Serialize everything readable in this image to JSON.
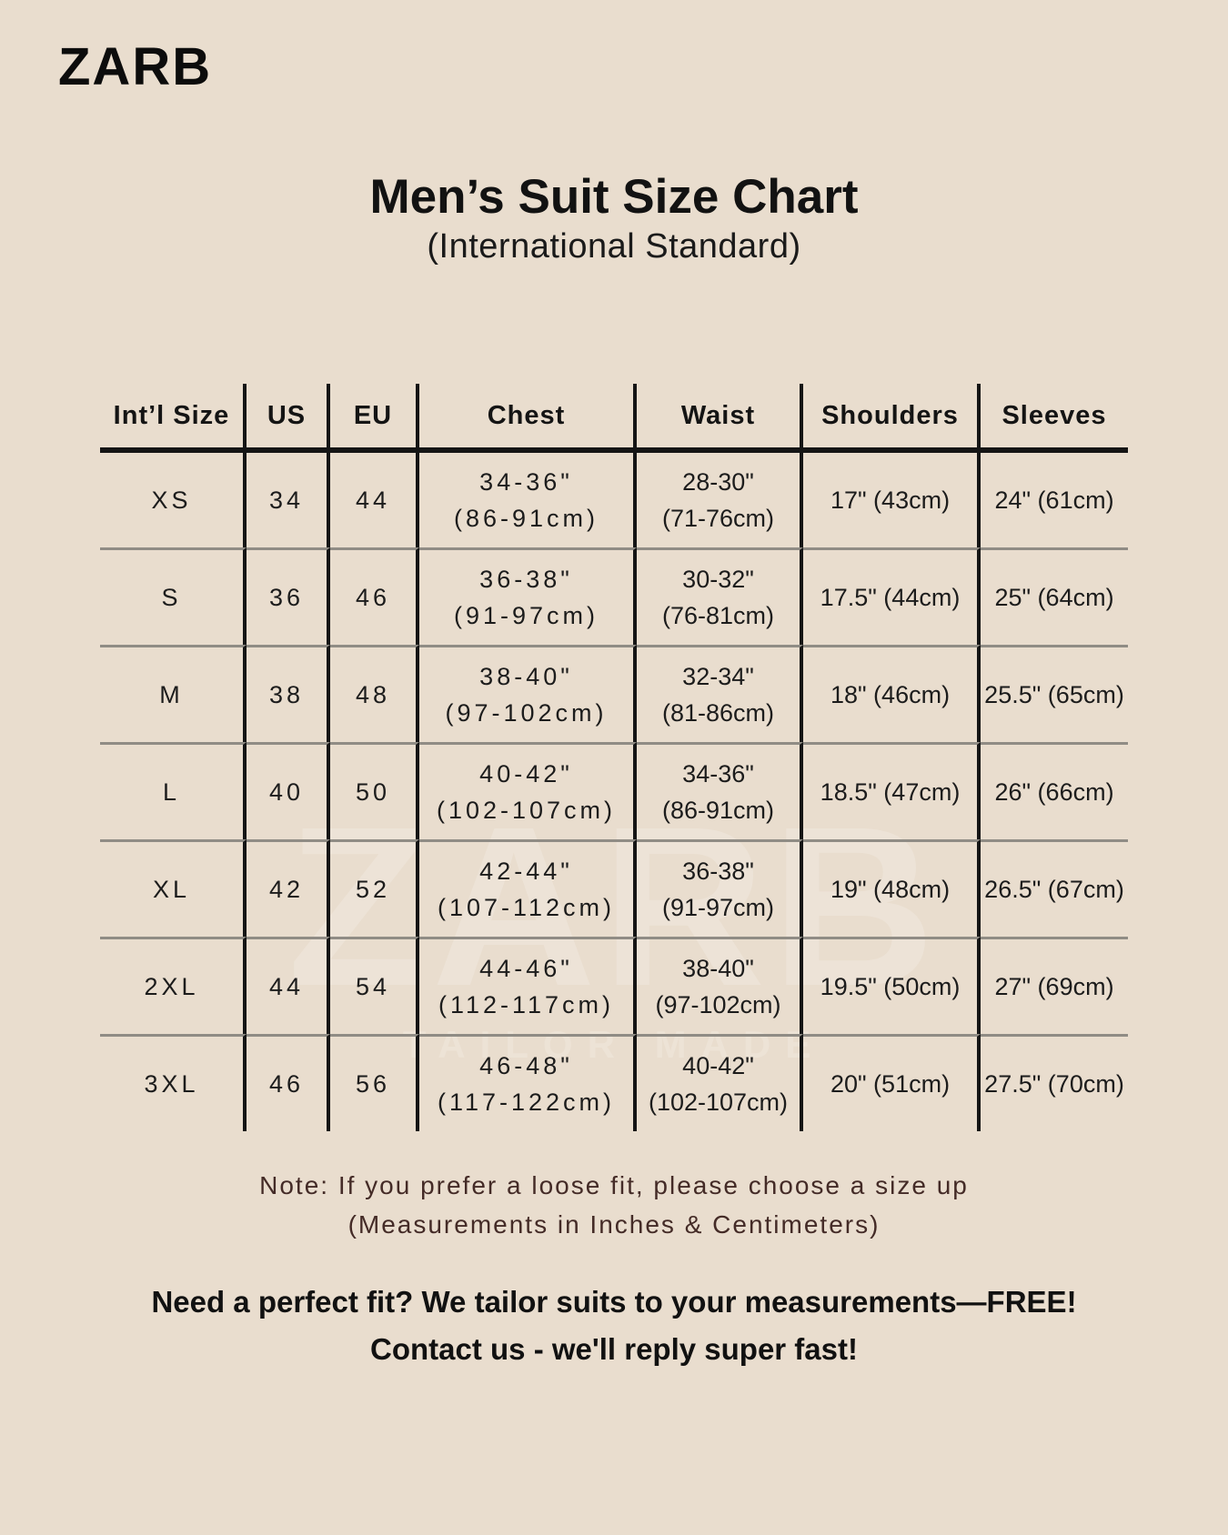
{
  "page": {
    "background": "#e9ddce",
    "text_color": "#1c1c1c",
    "note_color": "#442b27",
    "line_color": "#151515",
    "row_separator_color": "#908c85"
  },
  "logo": {
    "text": "ZARB"
  },
  "header": {
    "title": "Men’s Suit Size Chart",
    "subtitle": "(International Standard)"
  },
  "watermark": {
    "line1": "ZARB",
    "line2": "TAILOR MADE"
  },
  "table": {
    "columns": [
      "Int’l Size",
      "US",
      "EU",
      "Chest",
      "Waist",
      "Shoulders",
      "Sleeves"
    ],
    "rows": [
      {
        "intl": "XS",
        "us": "34",
        "eu": "44",
        "chest_in": "34-36\"",
        "chest_cm": "(86-91cm)",
        "waist_in": "28-30\"",
        "waist_cm": "(71-76cm)",
        "shoulders": "17\" (43cm)",
        "sleeves": "24\" (61cm)"
      },
      {
        "intl": "S",
        "us": "36",
        "eu": "46",
        "chest_in": "36-38\"",
        "chest_cm": "(91-97cm)",
        "waist_in": "30-32\"",
        "waist_cm": "(76-81cm)",
        "shoulders": "17.5\" (44cm)",
        "sleeves": "25\" (64cm)"
      },
      {
        "intl": "M",
        "us": "38",
        "eu": "48",
        "chest_in": "38-40\"",
        "chest_cm": "(97-102cm)",
        "waist_in": "32-34\"",
        "waist_cm": "(81-86cm)",
        "shoulders": "18\" (46cm)",
        "sleeves": "25.5\" (65cm)"
      },
      {
        "intl": "L",
        "us": "40",
        "eu": "50",
        "chest_in": "40-42\"",
        "chest_cm": "(102-107cm)",
        "waist_in": "34-36\"",
        "waist_cm": "(86-91cm)",
        "shoulders": "18.5\" (47cm)",
        "sleeves": "26\" (66cm)"
      },
      {
        "intl": "XL",
        "us": "42",
        "eu": "52",
        "chest_in": "42-44\"",
        "chest_cm": "(107-112cm)",
        "waist_in": "36-38\"",
        "waist_cm": "(91-97cm)",
        "shoulders": "19\" (48cm)",
        "sleeves": "26.5\" (67cm)"
      },
      {
        "intl": "2XL",
        "us": "44",
        "eu": "54",
        "chest_in": "44-46\"",
        "chest_cm": "(112-117cm)",
        "waist_in": "38-40\"",
        "waist_cm": "(97-102cm)",
        "shoulders": "19.5\" (50cm)",
        "sleeves": "27\" (69cm)"
      },
      {
        "intl": "3XL",
        "us": "46",
        "eu": "56",
        "chest_in": "46-48\"",
        "chest_cm": "(117-122cm)",
        "waist_in": "40-42\"",
        "waist_cm": "(102-107cm)",
        "shoulders": "20\" (51cm)",
        "sleeves": "27.5\" (70cm)"
      }
    ]
  },
  "note": {
    "line1": "Note: If you prefer a loose fit, please choose a size up",
    "line2": "(Measurements in Inches & Centimeters)"
  },
  "footer": {
    "line1": "Need a perfect fit? We tailor suits to your measurements—FREE!",
    "line2": "Contact us - we'll reply super fast!"
  }
}
